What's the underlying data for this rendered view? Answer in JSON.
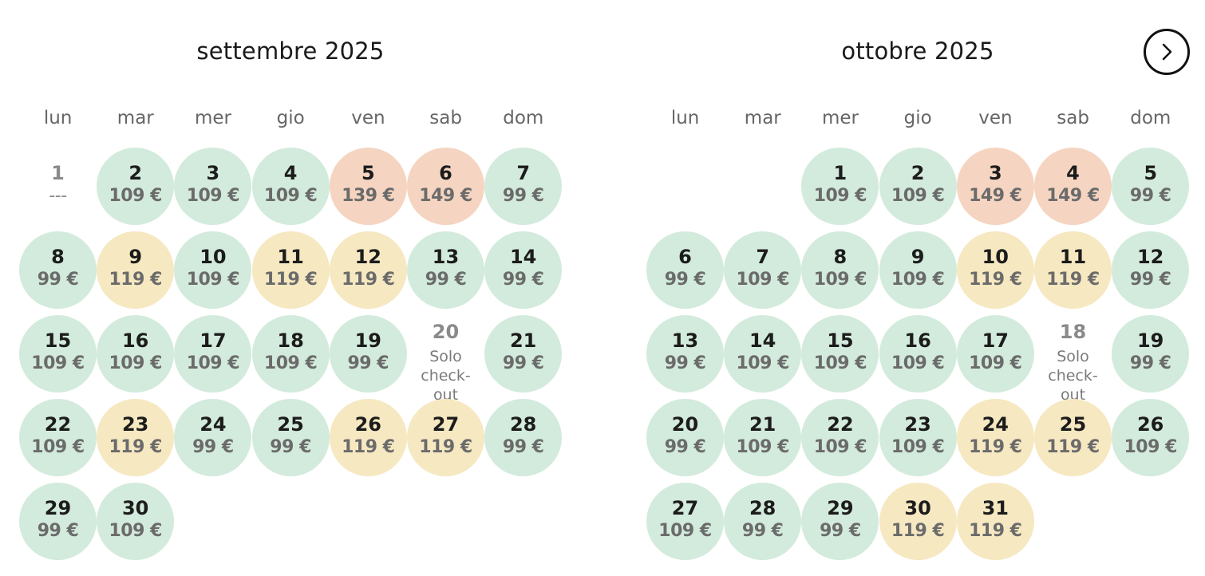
{
  "weekdays": [
    "lun",
    "mar",
    "mer",
    "gio",
    "ven",
    "sab",
    "dom"
  ],
  "next_button": {
    "icon": "chevron-right-icon"
  },
  "legend_colors": {
    "green": "#d3ebdc",
    "yellow": "#f6e8c1",
    "orange": "#f5d5c1"
  },
  "months": [
    {
      "title": "settembre 2025",
      "first_weekday_index": 0,
      "days": [
        {
          "day": "1",
          "price": "---",
          "state": "unavailable"
        },
        {
          "day": "2",
          "price": "109 €",
          "state": "green"
        },
        {
          "day": "3",
          "price": "109 €",
          "state": "green"
        },
        {
          "day": "4",
          "price": "109 €",
          "state": "green"
        },
        {
          "day": "5",
          "price": "139 €",
          "state": "orange"
        },
        {
          "day": "6",
          "price": "149 €",
          "state": "orange"
        },
        {
          "day": "7",
          "price": "99 €",
          "state": "green"
        },
        {
          "day": "8",
          "price": "99 €",
          "state": "green"
        },
        {
          "day": "9",
          "price": "119 €",
          "state": "yellow"
        },
        {
          "day": "10",
          "price": "109 €",
          "state": "green"
        },
        {
          "day": "11",
          "price": "119 €",
          "state": "yellow"
        },
        {
          "day": "12",
          "price": "119 €",
          "state": "yellow"
        },
        {
          "day": "13",
          "price": "99 €",
          "state": "green"
        },
        {
          "day": "14",
          "price": "99 €",
          "state": "green"
        },
        {
          "day": "15",
          "price": "109 €",
          "state": "green"
        },
        {
          "day": "16",
          "price": "109 €",
          "state": "green"
        },
        {
          "day": "17",
          "price": "109 €",
          "state": "green"
        },
        {
          "day": "18",
          "price": "109 €",
          "state": "green"
        },
        {
          "day": "19",
          "price": "99 €",
          "state": "green"
        },
        {
          "day": "20",
          "note": "Solo check-out",
          "state": "checkout"
        },
        {
          "day": "21",
          "price": "99 €",
          "state": "green"
        },
        {
          "day": "22",
          "price": "109 €",
          "state": "green"
        },
        {
          "day": "23",
          "price": "119 €",
          "state": "yellow"
        },
        {
          "day": "24",
          "price": "99 €",
          "state": "green"
        },
        {
          "day": "25",
          "price": "99 €",
          "state": "green"
        },
        {
          "day": "26",
          "price": "119 €",
          "state": "yellow"
        },
        {
          "day": "27",
          "price": "119 €",
          "state": "yellow"
        },
        {
          "day": "28",
          "price": "99 €",
          "state": "green"
        },
        {
          "day": "29",
          "price": "99 €",
          "state": "green"
        },
        {
          "day": "30",
          "price": "109 €",
          "state": "green"
        }
      ]
    },
    {
      "title": "ottobre 2025",
      "first_weekday_index": 2,
      "days": [
        {
          "day": "1",
          "price": "109 €",
          "state": "green"
        },
        {
          "day": "2",
          "price": "109 €",
          "state": "green"
        },
        {
          "day": "3",
          "price": "149 €",
          "state": "orange"
        },
        {
          "day": "4",
          "price": "149 €",
          "state": "orange"
        },
        {
          "day": "5",
          "price": "99 €",
          "state": "green"
        },
        {
          "day": "6",
          "price": "99 €",
          "state": "green"
        },
        {
          "day": "7",
          "price": "109 €",
          "state": "green"
        },
        {
          "day": "8",
          "price": "109 €",
          "state": "green"
        },
        {
          "day": "9",
          "price": "109 €",
          "state": "green"
        },
        {
          "day": "10",
          "price": "119 €",
          "state": "yellow"
        },
        {
          "day": "11",
          "price": "119 €",
          "state": "yellow"
        },
        {
          "day": "12",
          "price": "99 €",
          "state": "green"
        },
        {
          "day": "13",
          "price": "99 €",
          "state": "green"
        },
        {
          "day": "14",
          "price": "109 €",
          "state": "green"
        },
        {
          "day": "15",
          "price": "109 €",
          "state": "green"
        },
        {
          "day": "16",
          "price": "109 €",
          "state": "green"
        },
        {
          "day": "17",
          "price": "109 €",
          "state": "green"
        },
        {
          "day": "18",
          "note": "Solo check-out",
          "state": "checkout"
        },
        {
          "day": "19",
          "price": "99 €",
          "state": "green"
        },
        {
          "day": "20",
          "price": "99 €",
          "state": "green"
        },
        {
          "day": "21",
          "price": "109 €",
          "state": "green"
        },
        {
          "day": "22",
          "price": "109 €",
          "state": "green"
        },
        {
          "day": "23",
          "price": "109 €",
          "state": "green"
        },
        {
          "day": "24",
          "price": "119 €",
          "state": "yellow"
        },
        {
          "day": "25",
          "price": "119 €",
          "state": "yellow"
        },
        {
          "day": "26",
          "price": "109 €",
          "state": "green"
        },
        {
          "day": "27",
          "price": "109 €",
          "state": "green"
        },
        {
          "day": "28",
          "price": "99 €",
          "state": "green"
        },
        {
          "day": "29",
          "price": "99 €",
          "state": "green"
        },
        {
          "day": "30",
          "price": "119 €",
          "state": "yellow"
        },
        {
          "day": "31",
          "price": "119 €",
          "state": "yellow"
        }
      ]
    }
  ]
}
